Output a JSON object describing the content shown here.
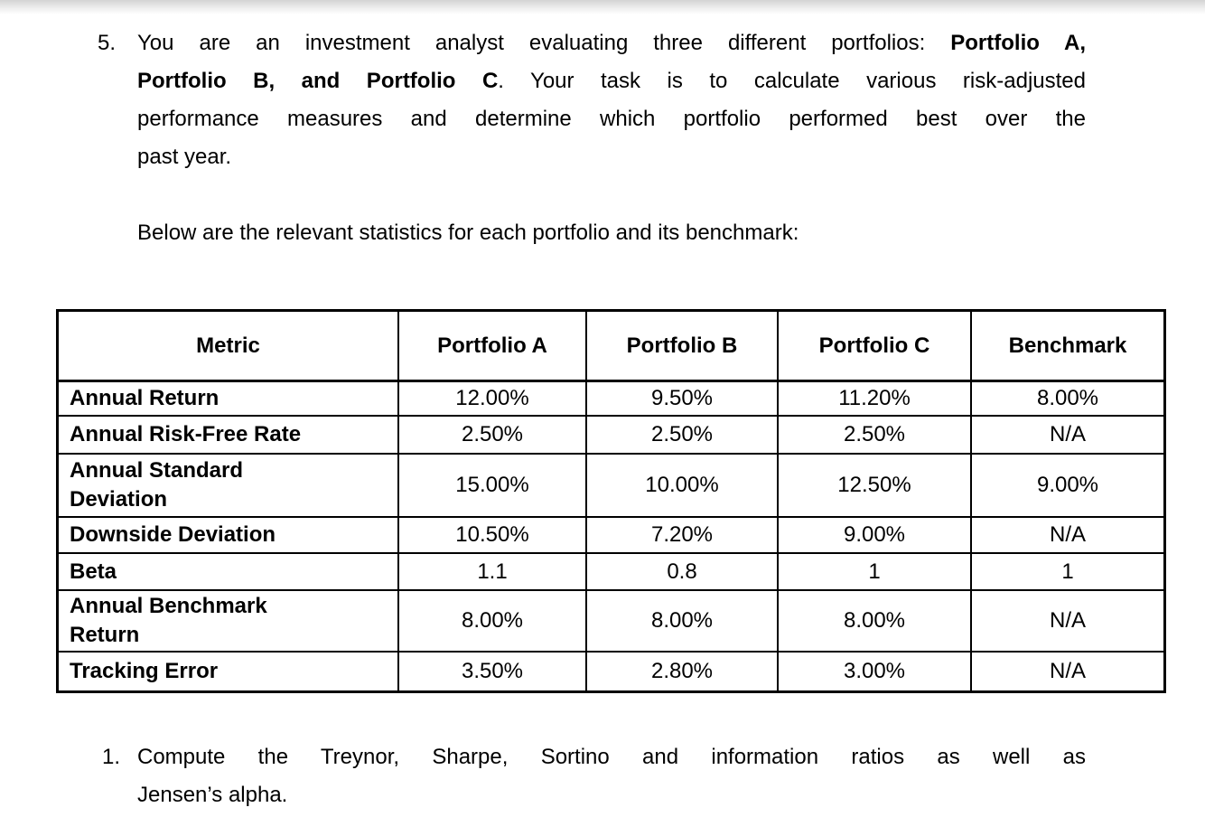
{
  "page": {
    "background": "#ffffff",
    "top_gradient_color": "#d4d4d4",
    "text_color": "#000000"
  },
  "question": {
    "number": "5.",
    "lines": [
      {
        "pre": "You are an investment analyst evaluating three different portfolios: ",
        "bold": "Portfolio A,",
        "post": ""
      },
      {
        "pre": "",
        "bold": "Portfolio B, and Portfolio C",
        "post": ". Your task is to calculate various risk-adjusted"
      },
      {
        "pre": "performance measures and determine which portfolio performed best over the",
        "bold": "",
        "post": ""
      },
      {
        "pre": "past year.",
        "bold": "",
        "post": ""
      }
    ],
    "intro": "Below are the relevant statistics for each portfolio and its benchmark:"
  },
  "table": {
    "headers": [
      "Metric",
      "Portfolio A",
      "Portfolio B",
      "Portfolio C",
      "Benchmark"
    ],
    "rows": [
      {
        "metric": "Annual Return",
        "values": [
          "12.00%",
          "9.50%",
          "11.20%",
          "8.00%"
        ]
      },
      {
        "metric": "Annual Risk-Free Rate",
        "values": [
          "2.50%",
          "2.50%",
          "2.50%",
          "N/A"
        ]
      },
      {
        "metric": "Annual Standard\nDeviation",
        "values": [
          "15.00%",
          "10.00%",
          "12.50%",
          "9.00%"
        ]
      },
      {
        "metric": "Downside Deviation",
        "values": [
          "10.50%",
          "7.20%",
          "9.00%",
          "N/A"
        ]
      },
      {
        "metric": "Beta",
        "values": [
          "1.1",
          "0.8",
          "1",
          "1"
        ]
      },
      {
        "metric": "Annual Benchmark\nReturn",
        "values": [
          "8.00%",
          "8.00%",
          "8.00%",
          "N/A"
        ]
      },
      {
        "metric": "Tracking Error",
        "values": [
          "3.50%",
          "2.80%",
          "3.00%",
          "N/A"
        ]
      }
    ]
  },
  "subquestion": {
    "number": "1.",
    "line1": "Compute the Treynor, Sharpe, Sortino and information ratios as well as",
    "line2": "Jensen’s alpha."
  }
}
